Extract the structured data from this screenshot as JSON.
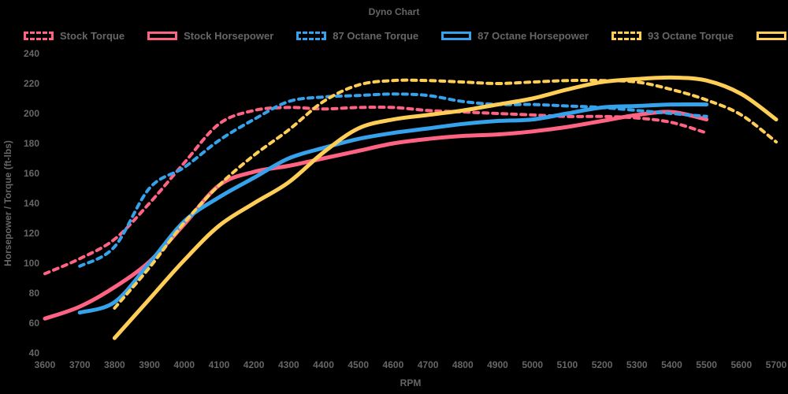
{
  "title": "Dyno Chart",
  "colors": {
    "background": "#000000",
    "text": "#666666",
    "pink": "#FF6384",
    "blue": "#36A2EB",
    "yellow": "#FFCE56"
  },
  "legend": [
    {
      "label": "Stock Torque",
      "color": "#FF6384",
      "dashed": true
    },
    {
      "label": "Stock Horsepower",
      "color": "#FF6384",
      "dashed": false
    },
    {
      "label": "87 Octane Torque",
      "color": "#36A2EB",
      "dashed": true
    },
    {
      "label": "87 Octane Horsepower",
      "color": "#36A2EB",
      "dashed": false
    },
    {
      "label": "93 Octane Torque",
      "color": "#FFCE56",
      "dashed": true
    },
    {
      "label": "93 Octane Horsepower",
      "color": "#FFCE56",
      "dashed": false
    }
  ],
  "chart_data": {
    "type": "line",
    "title": "Dyno Chart",
    "xlabel": "RPM",
    "ylabel": "Horsepower / Torque (ft-lbs)",
    "xlim": [
      3600,
      5700
    ],
    "ylim": [
      40,
      240
    ],
    "x_ticks": [
      3600,
      3700,
      3800,
      3900,
      4000,
      4100,
      4200,
      4300,
      4400,
      4500,
      4600,
      4700,
      4800,
      4900,
      5000,
      5100,
      5200,
      5300,
      5400,
      5500,
      5600,
      5700
    ],
    "y_ticks": [
      40,
      60,
      80,
      100,
      120,
      140,
      160,
      180,
      200,
      220,
      240
    ],
    "grid": false,
    "legend_position": "top",
    "series": [
      {
        "name": "Stock Torque",
        "color": "#FF6384",
        "style": "dashed",
        "x": [
          3600,
          3700,
          3800,
          3900,
          4000,
          4100,
          4200,
          4300,
          4400,
          4500,
          4600,
          4700,
          4800,
          4900,
          5000,
          5100,
          5200,
          5300,
          5400,
          5500
        ],
        "values": [
          93,
          103,
          116,
          140,
          167,
          193,
          202,
          204,
          203,
          204,
          204,
          202,
          201,
          200,
          199,
          198,
          198,
          197,
          194,
          187
        ]
      },
      {
        "name": "Stock Horsepower",
        "color": "#FF6384",
        "style": "solid",
        "x": [
          3600,
          3700,
          3800,
          3900,
          4000,
          4100,
          4200,
          4300,
          4400,
          4500,
          4600,
          4700,
          4800,
          4900,
          5000,
          5100,
          5200,
          5300,
          5400,
          5500
        ],
        "values": [
          63,
          71,
          84,
          101,
          126,
          152,
          161,
          165,
          170,
          175,
          180,
          183,
          185,
          186,
          188,
          191,
          195,
          199,
          201,
          196
        ]
      },
      {
        "name": "87 Octane Torque",
        "color": "#36A2EB",
        "style": "dashed",
        "x": [
          3700,
          3800,
          3900,
          4000,
          4100,
          4200,
          4300,
          4400,
          4500,
          4600,
          4700,
          4800,
          4900,
          5000,
          5100,
          5200,
          5300,
          5400,
          5500
        ],
        "values": [
          98,
          111,
          150,
          164,
          182,
          196,
          208,
          211,
          212,
          213,
          212,
          208,
          206,
          206,
          205,
          204,
          202,
          200,
          198
        ]
      },
      {
        "name": "87 Octane Horsepower",
        "color": "#36A2EB",
        "style": "solid",
        "x": [
          3700,
          3800,
          3900,
          4000,
          4100,
          4200,
          4300,
          4400,
          4500,
          4600,
          4700,
          4800,
          4900,
          5000,
          5100,
          5200,
          5300,
          5400,
          5500
        ],
        "values": [
          67,
          74,
          100,
          128,
          144,
          157,
          170,
          177,
          183,
          187,
          190,
          193,
          195,
          196,
          200,
          204,
          205,
          206,
          206
        ]
      },
      {
        "name": "93 Octane Torque",
        "color": "#FFCE56",
        "style": "dashed",
        "x": [
          3800,
          3900,
          4000,
          4100,
          4200,
          4300,
          4400,
          4500,
          4600,
          4700,
          4800,
          4900,
          5000,
          5100,
          5200,
          5300,
          5400,
          5500,
          5600,
          5700
        ],
        "values": [
          70,
          97,
          127,
          152,
          172,
          189,
          208,
          219,
          222,
          222,
          221,
          220,
          221,
          222,
          222,
          221,
          216,
          209,
          199,
          181
        ]
      },
      {
        "name": "93 Octane Horsepower",
        "color": "#FFCE56",
        "style": "solid",
        "x": [
          3800,
          3900,
          4000,
          4100,
          4200,
          4300,
          4400,
          4500,
          4600,
          4700,
          4800,
          4900,
          5000,
          5100,
          5200,
          5300,
          5400,
          5500,
          5600,
          5700
        ],
        "values": [
          50,
          76,
          102,
          125,
          140,
          154,
          174,
          190,
          196,
          199,
          202,
          206,
          210,
          216,
          221,
          223,
          224,
          222,
          213,
          196
        ]
      }
    ]
  }
}
